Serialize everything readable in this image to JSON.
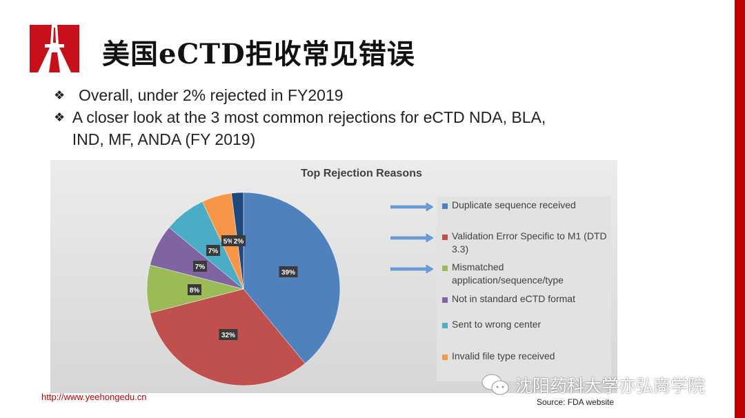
{
  "slide": {
    "title": "美国eCTD拒收常见错误",
    "bullets": [
      "Overall, under 2% rejected in FY2019",
      "A closer look at the 3 most common rejections for eCTD  NDA, BLA, IND, MF, ANDA (FY 2019)"
    ],
    "url": "http://www.yeehongedu.cn",
    "source": "Source: FDA website",
    "watermark": "沈阳药科大学亦弘商学院",
    "accent_color": "#c00000"
  },
  "chart_data": {
    "type": "pie",
    "title": "Top Rejection Reasons",
    "slices": [
      {
        "label": "Duplicate sequence received",
        "value": 39,
        "data_label": "39%",
        "color": "#4f81bd",
        "arrow": true
      },
      {
        "label": "Validation Error Specific to M1 (DTD 3.3)",
        "value": 32,
        "data_label": "32%",
        "color": "#c0504d",
        "arrow": true
      },
      {
        "label": "Mismatched application/sequence/type",
        "value": 8,
        "data_label": "8%",
        "color": "#9bbb59",
        "arrow": true
      },
      {
        "label": "Not in standard eCTD format",
        "value": 7,
        "data_label": "7%",
        "color": "#8064a2",
        "arrow": false
      },
      {
        "label": "Sent to wrong center",
        "value": 7,
        "data_label": "7%",
        "color": "#4bacc6",
        "arrow": false
      },
      {
        "label": "Invalid file type received",
        "value": 5,
        "data_label": "5%",
        "color": "#f79646",
        "arrow": false
      },
      {
        "label": "",
        "value": 2,
        "data_label": "2%",
        "color": "#1f497d",
        "arrow": false
      }
    ],
    "legend_position": "right"
  }
}
